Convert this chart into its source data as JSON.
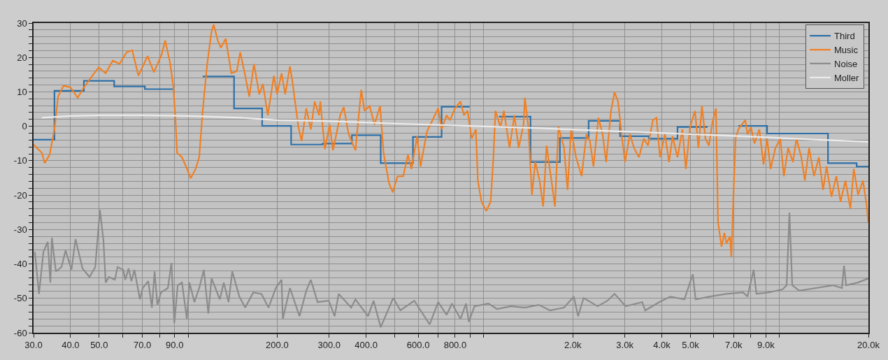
{
  "chart_data": {
    "type": "line",
    "log": "x",
    "grid": true,
    "legend": "top right",
    "marker": "none",
    "line_style": "solid",
    "xlim": [
      30,
      20000
    ],
    "xticks": [
      {
        "value": 30,
        "label": "30.0"
      },
      {
        "value": 40,
        "label": "40.0"
      },
      {
        "value": 50,
        "label": "50.0"
      },
      {
        "value": 60,
        "label": null
      },
      {
        "value": 70,
        "label": "70.0"
      },
      {
        "value": 80,
        "label": null
      },
      {
        "value": 90,
        "label": "90.0"
      },
      {
        "value": 100,
        "label": null
      },
      {
        "value": 200,
        "label": "200.0"
      },
      {
        "value": 300,
        "label": "300.0"
      },
      {
        "value": 400,
        "label": "400.0"
      },
      {
        "value": 500,
        "label": null
      },
      {
        "value": 600,
        "label": "600.0"
      },
      {
        "value": 700,
        "label": null
      },
      {
        "value": 800,
        "label": "800.0"
      },
      {
        "value": 900,
        "label": null
      },
      {
        "value": 1000,
        "label": null
      },
      {
        "value": 2000,
        "label": "2.0k"
      },
      {
        "value": 3000,
        "label": "3.0k"
      },
      {
        "value": 4000,
        "label": "4.0k"
      },
      {
        "value": 5000,
        "label": "5.0k"
      },
      {
        "value": 6000,
        "label": null
      },
      {
        "value": 7000,
        "label": "7.0k"
      },
      {
        "value": 8000,
        "label": null
      },
      {
        "value": 9000,
        "label": "9.0k"
      },
      {
        "value": 10000,
        "label": null
      },
      {
        "value": 20000,
        "label": "20.0k"
      }
    ],
    "ylim": [
      -60,
      30
    ],
    "yticks": [
      -60,
      {
        "value": -58,
        "label": null
      },
      {
        "value": -56,
        "label": null
      },
      {
        "value": -54,
        "label": null
      },
      {
        "value": -52,
        "label": null
      },
      -50,
      {
        "value": -48,
        "label": null
      },
      {
        "value": -46,
        "label": null
      },
      {
        "value": -44,
        "label": null
      },
      {
        "value": -42,
        "label": null
      },
      -40,
      {
        "value": -38,
        "label": null
      },
      {
        "value": -36,
        "label": null
      },
      {
        "value": -34,
        "label": null
      },
      {
        "value": -32,
        "label": null
      },
      -30,
      {
        "value": -28,
        "label": null
      },
      {
        "value": -26,
        "label": null
      },
      {
        "value": -24,
        "label": null
      },
      {
        "value": -22,
        "label": null
      },
      -20,
      {
        "value": -18,
        "label": null
      },
      {
        "value": -16,
        "label": null
      },
      {
        "value": -14,
        "label": null
      },
      {
        "value": -12,
        "label": null
      },
      -10,
      {
        "value": -8,
        "label": null
      },
      {
        "value": -6,
        "label": null
      },
      {
        "value": -4,
        "label": null
      },
      {
        "value": -2,
        "label": null
      },
      0,
      {
        "value": 2,
        "label": null
      },
      {
        "value": 4,
        "label": null
      },
      {
        "value": 6,
        "label": null
      },
      {
        "value": 8,
        "label": null
      },
      10,
      {
        "value": 12,
        "label": null
      },
      {
        "value": 14,
        "label": null
      },
      {
        "value": 16,
        "label": null
      },
      {
        "value": 18,
        "label": null
      },
      20,
      {
        "value": 22,
        "label": null
      },
      {
        "value": 24,
        "label": null
      },
      {
        "value": 26,
        "label": null
      },
      {
        "value": 28,
        "label": null
      },
      30
    ],
    "series": [
      {
        "name": "Third",
        "type": "step",
        "color": "#2e70a8",
        "x": [
          30,
          35.3,
          44.4,
          56.2,
          71.4,
          88.8,
          112,
          143,
          178,
          223,
          285,
          358,
          448,
          576,
          720,
          896,
          1126,
          1439,
          1809,
          2263,
          2891,
          3615,
          4521,
          5715,
          7263,
          9084,
          14596,
          18249,
          20000
        ],
        "values": [
          -3.9,
          10.3,
          13.2,
          11.6,
          10.8,
          null,
          14.5,
          5.2,
          0.1,
          -5.3,
          -5.0,
          -2.6,
          -10.7,
          -3.1,
          5.7,
          null,
          2.8,
          -10.4,
          -3.4,
          1.6,
          -2.9,
          -3.6,
          -0.2,
          null,
          0.1,
          -2.1,
          -10.7,
          -11.7,
          -11.7
        ]
      },
      {
        "name": "Music",
        "color": "#f08024",
        "x": [
          30,
          30.8,
          32.0,
          32.7,
          34.0,
          35.3,
          36.3,
          37.9,
          40.0,
          42.3,
          44.4,
          47.7,
          49.8,
          52.6,
          55.6,
          58.6,
          61.9,
          64.7,
          67.9,
          72.9,
          76.6,
          81.3,
          83.6,
          86.9,
          89.2,
          90.7,
          91.7,
          95.3,
          98.4,
          102,
          106,
          109,
          112,
          116,
          120,
          122,
          126,
          129,
          134,
          140,
          146,
          150,
          156,
          161,
          167,
          174,
          179,
          186,
          195,
          200,
          207,
          213,
          221,
          225,
          236,
          242,
          251,
          260,
          268,
          277,
          280,
          290,
          301,
          309,
          327,
          336,
          349,
          368,
          385,
          395,
          411,
          427,
          446,
          458,
          478,
          492,
          511,
          534,
          554,
          569,
          595,
          611,
          642,
          671,
          701,
          720,
          748,
          769,
          799,
          834,
          857,
          881,
          910,
          940,
          955,
          982,
          1020,
          1055,
          1078,
          1095,
          1138,
          1170,
          1222,
          1269,
          1312,
          1363,
          1377,
          1415,
          1455,
          1494,
          1545,
          1588,
          1631,
          1694,
          1741,
          1789,
          1869,
          1920,
          1974,
          2051,
          2143,
          2224,
          2286,
          2350,
          2442,
          2523,
          2594,
          2694,
          2769,
          2846,
          2924,
          3005,
          3120,
          3223,
          3349,
          3479,
          3595,
          3734,
          3838,
          3945,
          4098,
          4234,
          4351,
          4521,
          4697,
          4826,
          4986,
          5181,
          5322,
          5470,
          5621,
          5777,
          5935,
          6100,
          6200,
          6373,
          6513,
          6620,
          6804,
          6878,
          6991,
          7106,
          7263,
          7463,
          7670,
          7797,
          8012,
          8234,
          8551,
          8837,
          9084,
          9333,
          9696,
          10070,
          10350,
          10700,
          11110,
          11420,
          11860,
          12190,
          12600,
          13090,
          13600,
          14050,
          14440,
          15000,
          15580,
          16100,
          16720,
          17380,
          17850,
          18450,
          19170,
          19700,
          20000
        ],
        "values": [
          -5.3,
          -6.3,
          -7.7,
          -10.7,
          -8.3,
          -0.9,
          8.6,
          11.8,
          11.3,
          8.3,
          11.3,
          15.0,
          17.1,
          15.4,
          19.1,
          18.1,
          21.5,
          22.1,
          14.7,
          20.4,
          15.7,
          20.8,
          24.9,
          18.4,
          11.3,
          1.1,
          -7.7,
          -9.0,
          -11.7,
          -15.1,
          -12.4,
          -9.0,
          4.5,
          18.1,
          27.6,
          29.6,
          24.9,
          22.8,
          25.5,
          15.4,
          16.0,
          21.5,
          14.7,
          8.6,
          18.1,
          9.3,
          12.3,
          3.2,
          14.7,
          9.3,
          15.4,
          9.3,
          17.4,
          13.3,
          -0.2,
          -4.3,
          5.2,
          -0.9,
          7.2,
          3.2,
          7.2,
          -6.7,
          0.5,
          -7.0,
          3.2,
          5.6,
          -2.3,
          -7.0,
          10.6,
          4.5,
          5.9,
          0.5,
          5.9,
          -7.7,
          -16.5,
          -19.2,
          -14.5,
          -14.5,
          -8.3,
          -12.4,
          -2.9,
          -11.7,
          -1.6,
          1.8,
          5.2,
          -0.9,
          3.2,
          1.8,
          5.2,
          7.2,
          3.2,
          4.5,
          -3.6,
          -0.9,
          -15.8,
          -21.9,
          -24.6,
          -21.9,
          -9.0,
          4.5,
          -0.2,
          4.5,
          -6.3,
          3.2,
          -6.3,
          0.5,
          8.3,
          -0.2,
          -19.9,
          -10.4,
          -15.8,
          -23.3,
          -5.6,
          -15.8,
          -23.3,
          -0.2,
          -6.3,
          -18.5,
          -0.9,
          -9.0,
          -14.5,
          -2.3,
          -4.3,
          -11.7,
          2.5,
          -2.3,
          -10.4,
          4.5,
          9.9,
          7.2,
          -2.3,
          -10.4,
          -2.3,
          -6.3,
          -9.0,
          -3.6,
          -5.6,
          1.8,
          2.5,
          -9.0,
          -2.3,
          -10.4,
          -2.9,
          -9.0,
          -0.9,
          -12.4,
          -0.2,
          4.5,
          -6.3,
          5.9,
          -3.6,
          -5.6,
          1.1,
          5.2,
          -28,
          -35,
          -31,
          -34,
          -32,
          -38,
          -20,
          -3.6,
          -0.9,
          0.5,
          1.8,
          -2.3,
          -0.2,
          -5.0,
          -0.9,
          -11.1,
          -3.6,
          -12.4,
          -6.3,
          -3.6,
          -14.5,
          -6.3,
          -10.4,
          -3.6,
          -9.0,
          -15.8,
          -6.3,
          -14.5,
          -9.0,
          -18.5,
          -11.7,
          -20.5,
          -14.5,
          -21.9,
          -15.8,
          -23.9,
          -12.4,
          -19.9,
          -15.8,
          -22.6,
          -28.0
        ]
      },
      {
        "name": "Noise",
        "color": "#8c8c8c",
        "x": [
          30.3,
          31.3,
          32.4,
          33.5,
          34.2,
          34.6,
          35.7,
          37.3,
          38.5,
          40.3,
          41.6,
          43.9,
          46.4,
          48.5,
          50.3,
          51.7,
          52.6,
          54.0,
          56.5,
          57.7,
          60.3,
          61.3,
          62.9,
          64.3,
          65.8,
          68.7,
          70.2,
          73.3,
          75.4,
          77.0,
          78.7,
          80.9,
          85.4,
          87.8,
          89.8,
          92.2,
          95.3,
          99.0,
          101,
          105,
          109,
          113,
          117,
          120,
          128,
          132,
          137,
          141,
          149,
          156,
          166,
          177,
          187,
          198,
          207,
          209,
          221,
          238,
          251,
          260,
          274,
          299,
          313,
          323,
          356,
          368,
          406,
          424,
          448,
          494,
          522,
          582,
          656,
          701,
          748,
          781,
          834,
          871,
          890,
          930,
          1037,
          1107,
          1235,
          1377,
          1535,
          1675,
          1869,
          2016,
          2084,
          2176,
          2427,
          2620,
          2769,
          3017,
          3436,
          3516,
          3920,
          4276,
          4770,
          5092,
          5205,
          5802,
          6620,
          7539,
          7797,
          8180,
          8360,
          9173,
          10240,
          10580,
          10810,
          11050,
          11670,
          13300,
          15160,
          16270,
          16540,
          16810,
          18450,
          20000
        ],
        "values": [
          -36.5,
          -48.7,
          -36.5,
          -33.6,
          -45.4,
          -32.4,
          -42.2,
          -40.9,
          -36.1,
          -41.7,
          -32.8,
          -41.3,
          -43.8,
          -40.9,
          -24.3,
          -33.2,
          -45.4,
          -43.8,
          -44.6,
          -40.9,
          -41.7,
          -44.6,
          -41.3,
          -45.0,
          -41.7,
          -50.3,
          -47.0,
          -45.0,
          -52.7,
          -42.2,
          -51.9,
          -48.3,
          -47.0,
          -39.7,
          -57.2,
          -46.2,
          -45.4,
          -56.0,
          -45.4,
          -51.1,
          -47.0,
          -41.7,
          -54.4,
          -44.2,
          -50.3,
          -45.4,
          -51.1,
          -42.2,
          -49.5,
          -52.7,
          -48.3,
          -48.7,
          -52.7,
          -47.0,
          -44.6,
          -56.0,
          -47.0,
          -55.2,
          -47.8,
          -44.6,
          -51.1,
          -50.7,
          -55.2,
          -48.7,
          -52.7,
          -50.3,
          -55.2,
          -50.7,
          -58.4,
          -49.9,
          -53.5,
          -50.7,
          -57.6,
          -51.1,
          -54.8,
          -51.5,
          -56.0,
          -51.5,
          -56.8,
          -52.3,
          -51.5,
          -53.1,
          -52.3,
          -52.7,
          -51.9,
          -53.5,
          -52.7,
          -49.5,
          -55.2,
          -49.9,
          -52.3,
          -50.7,
          -48.7,
          -52.3,
          -51.1,
          -53.5,
          -51.1,
          -49.5,
          -50.3,
          -43.0,
          -50.3,
          -49.5,
          -48.7,
          -48.3,
          -49.5,
          -41.7,
          -48.7,
          -48.3,
          -47.4,
          -46.2,
          -25.1,
          -46.2,
          -47.8,
          -47.0,
          -46.2,
          -47.0,
          -40.5,
          -46.2,
          -45.4,
          -44.2
        ]
      },
      {
        "name": "Moller",
        "color": "#ebebeb",
        "x": [
          32,
          40,
          50,
          70,
          100,
          150,
          200,
          300,
          500,
          900,
          1500,
          2200,
          3500,
          5000,
          8000,
          12000,
          20000
        ],
        "values": [
          2.5,
          3,
          3.2,
          3.2,
          3,
          2.5,
          1.8,
          1.5,
          0.8,
          0.1,
          -0.5,
          -1.1,
          -1.7,
          -2.3,
          -3,
          -3.7,
          -4.5
        ]
      }
    ]
  }
}
